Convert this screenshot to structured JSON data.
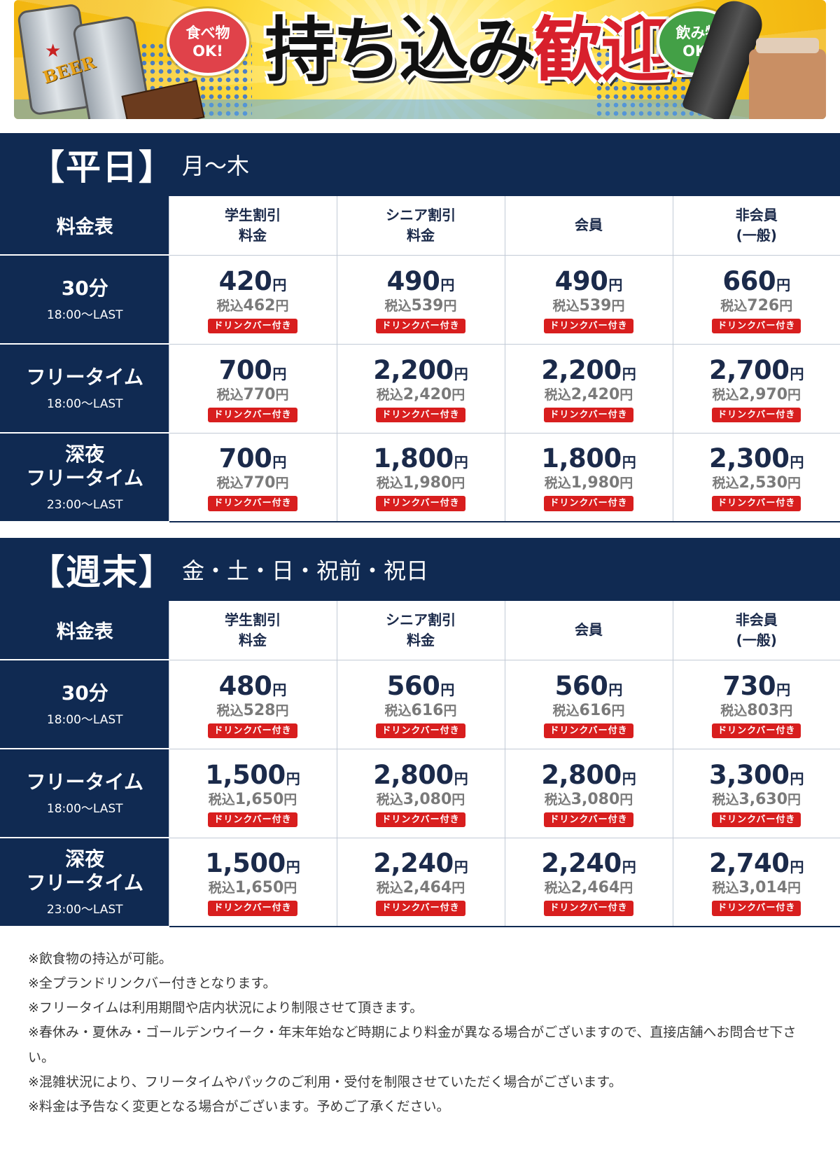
{
  "banner": {
    "food_bubble_line1": "食べ物",
    "food_bubble_line2": "OK!",
    "drink_bubble_line1": "飲み物",
    "drink_bubble_line2": "OK!",
    "headline_black": "持ち込み",
    "headline_red": "歓迎!",
    "can_text": "BEER"
  },
  "columns": [
    "学生割引\n料金",
    "シニア割引\n料金",
    "会員",
    "非会員\n(一般)"
  ],
  "corner_label": "料金表",
  "badge_text": "ドリンクバー付き",
  "unit": "円",
  "tax_label": "税込",
  "weekday": {
    "title": "【平日】",
    "days": "月～木",
    "rows": [
      {
        "name": "30分",
        "time": "18:00～LAST",
        "prices": [
          {
            "price": "420",
            "tax": "462"
          },
          {
            "price": "490",
            "tax": "539"
          },
          {
            "price": "490",
            "tax": "539"
          },
          {
            "price": "660",
            "tax": "726"
          }
        ]
      },
      {
        "name": "フリータイム",
        "time": "18:00～LAST",
        "prices": [
          {
            "price": "700",
            "tax": "770"
          },
          {
            "price": "2,200",
            "tax": "2,420"
          },
          {
            "price": "2,200",
            "tax": "2,420"
          },
          {
            "price": "2,700",
            "tax": "2,970"
          }
        ]
      },
      {
        "name": "深夜\nフリータイム",
        "time": "23:00～LAST",
        "prices": [
          {
            "price": "700",
            "tax": "770"
          },
          {
            "price": "1,800",
            "tax": "1,980"
          },
          {
            "price": "1,800",
            "tax": "1,980"
          },
          {
            "price": "2,300",
            "tax": "2,530"
          }
        ]
      }
    ]
  },
  "weekend": {
    "title": "【週末】",
    "days": "金・土・日・祝前・祝日",
    "rows": [
      {
        "name": "30分",
        "time": "18:00～LAST",
        "prices": [
          {
            "price": "480",
            "tax": "528"
          },
          {
            "price": "560",
            "tax": "616"
          },
          {
            "price": "560",
            "tax": "616"
          },
          {
            "price": "730",
            "tax": "803"
          }
        ]
      },
      {
        "name": "フリータイム",
        "time": "18:00～LAST",
        "prices": [
          {
            "price": "1,500",
            "tax": "1,650"
          },
          {
            "price": "2,800",
            "tax": "3,080"
          },
          {
            "price": "2,800",
            "tax": "3,080"
          },
          {
            "price": "3,300",
            "tax": "3,630"
          }
        ]
      },
      {
        "name": "深夜\nフリータイム",
        "time": "23:00～LAST",
        "prices": [
          {
            "price": "1,500",
            "tax": "1,650"
          },
          {
            "price": "2,240",
            "tax": "2,464"
          },
          {
            "price": "2,240",
            "tax": "2,464"
          },
          {
            "price": "2,740",
            "tax": "3,014"
          }
        ]
      }
    ]
  },
  "notes": [
    "※飲食物の持込が可能。",
    "※全プランドリンクバー付きとなります。",
    "※フリータイムは利用期間や店内状況により制限させて頂きます。",
    "※春休み・夏休み・ゴールデンウイーク・年末年始など時期により料金が異なる場合がございますので、直接店舗へお問合せ下さい。",
    "※混雑状況により、フリータイムやパックのご利用・受付を制限させていただく場合がございます。",
    "※料金は予告なく変更となる場合がございます。予めご了承ください。"
  ],
  "colors": {
    "navy": "#102a52",
    "badge_red": "#d81e1e",
    "headline_red": "#d8202c"
  }
}
